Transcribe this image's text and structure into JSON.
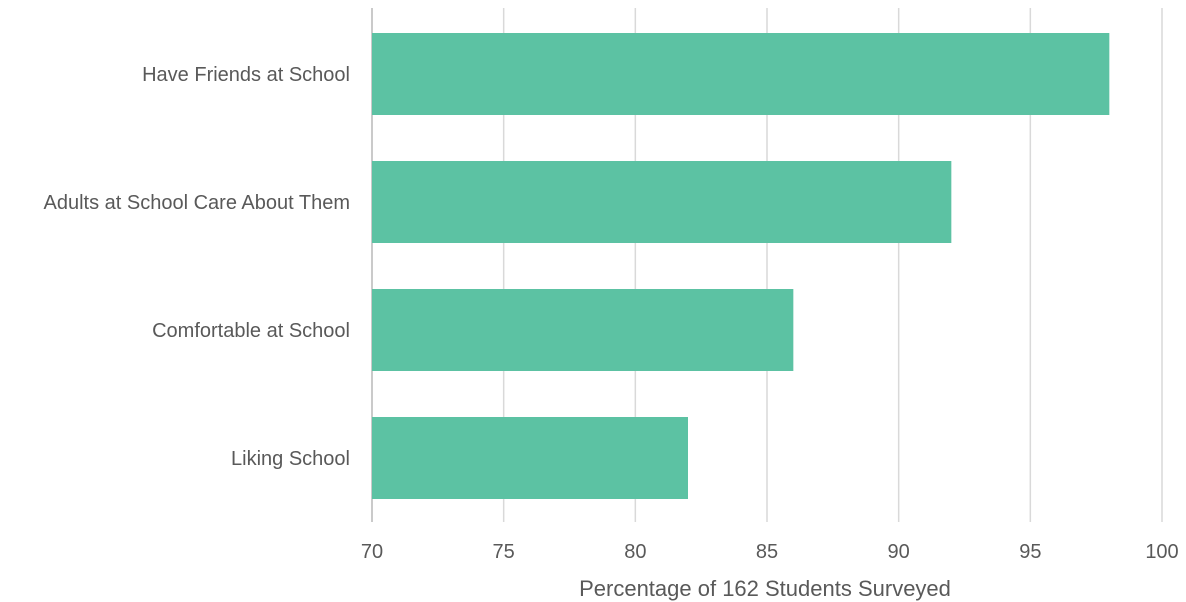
{
  "chart_data": {
    "type": "bar",
    "orientation": "horizontal",
    "categories": [
      "Have Friends at School",
      "Adults at School Care About Them",
      "Comfortable at School",
      "Liking School"
    ],
    "values": [
      98,
      92,
      86,
      82
    ],
    "xlabel": "Percentage of 162 Students Surveyed",
    "ylabel": "",
    "xlim": [
      70,
      100
    ],
    "ticks": [
      70,
      75,
      80,
      85,
      90,
      95,
      100
    ],
    "grid": true,
    "legend": "none",
    "bar_color": "#5cc2a3"
  }
}
